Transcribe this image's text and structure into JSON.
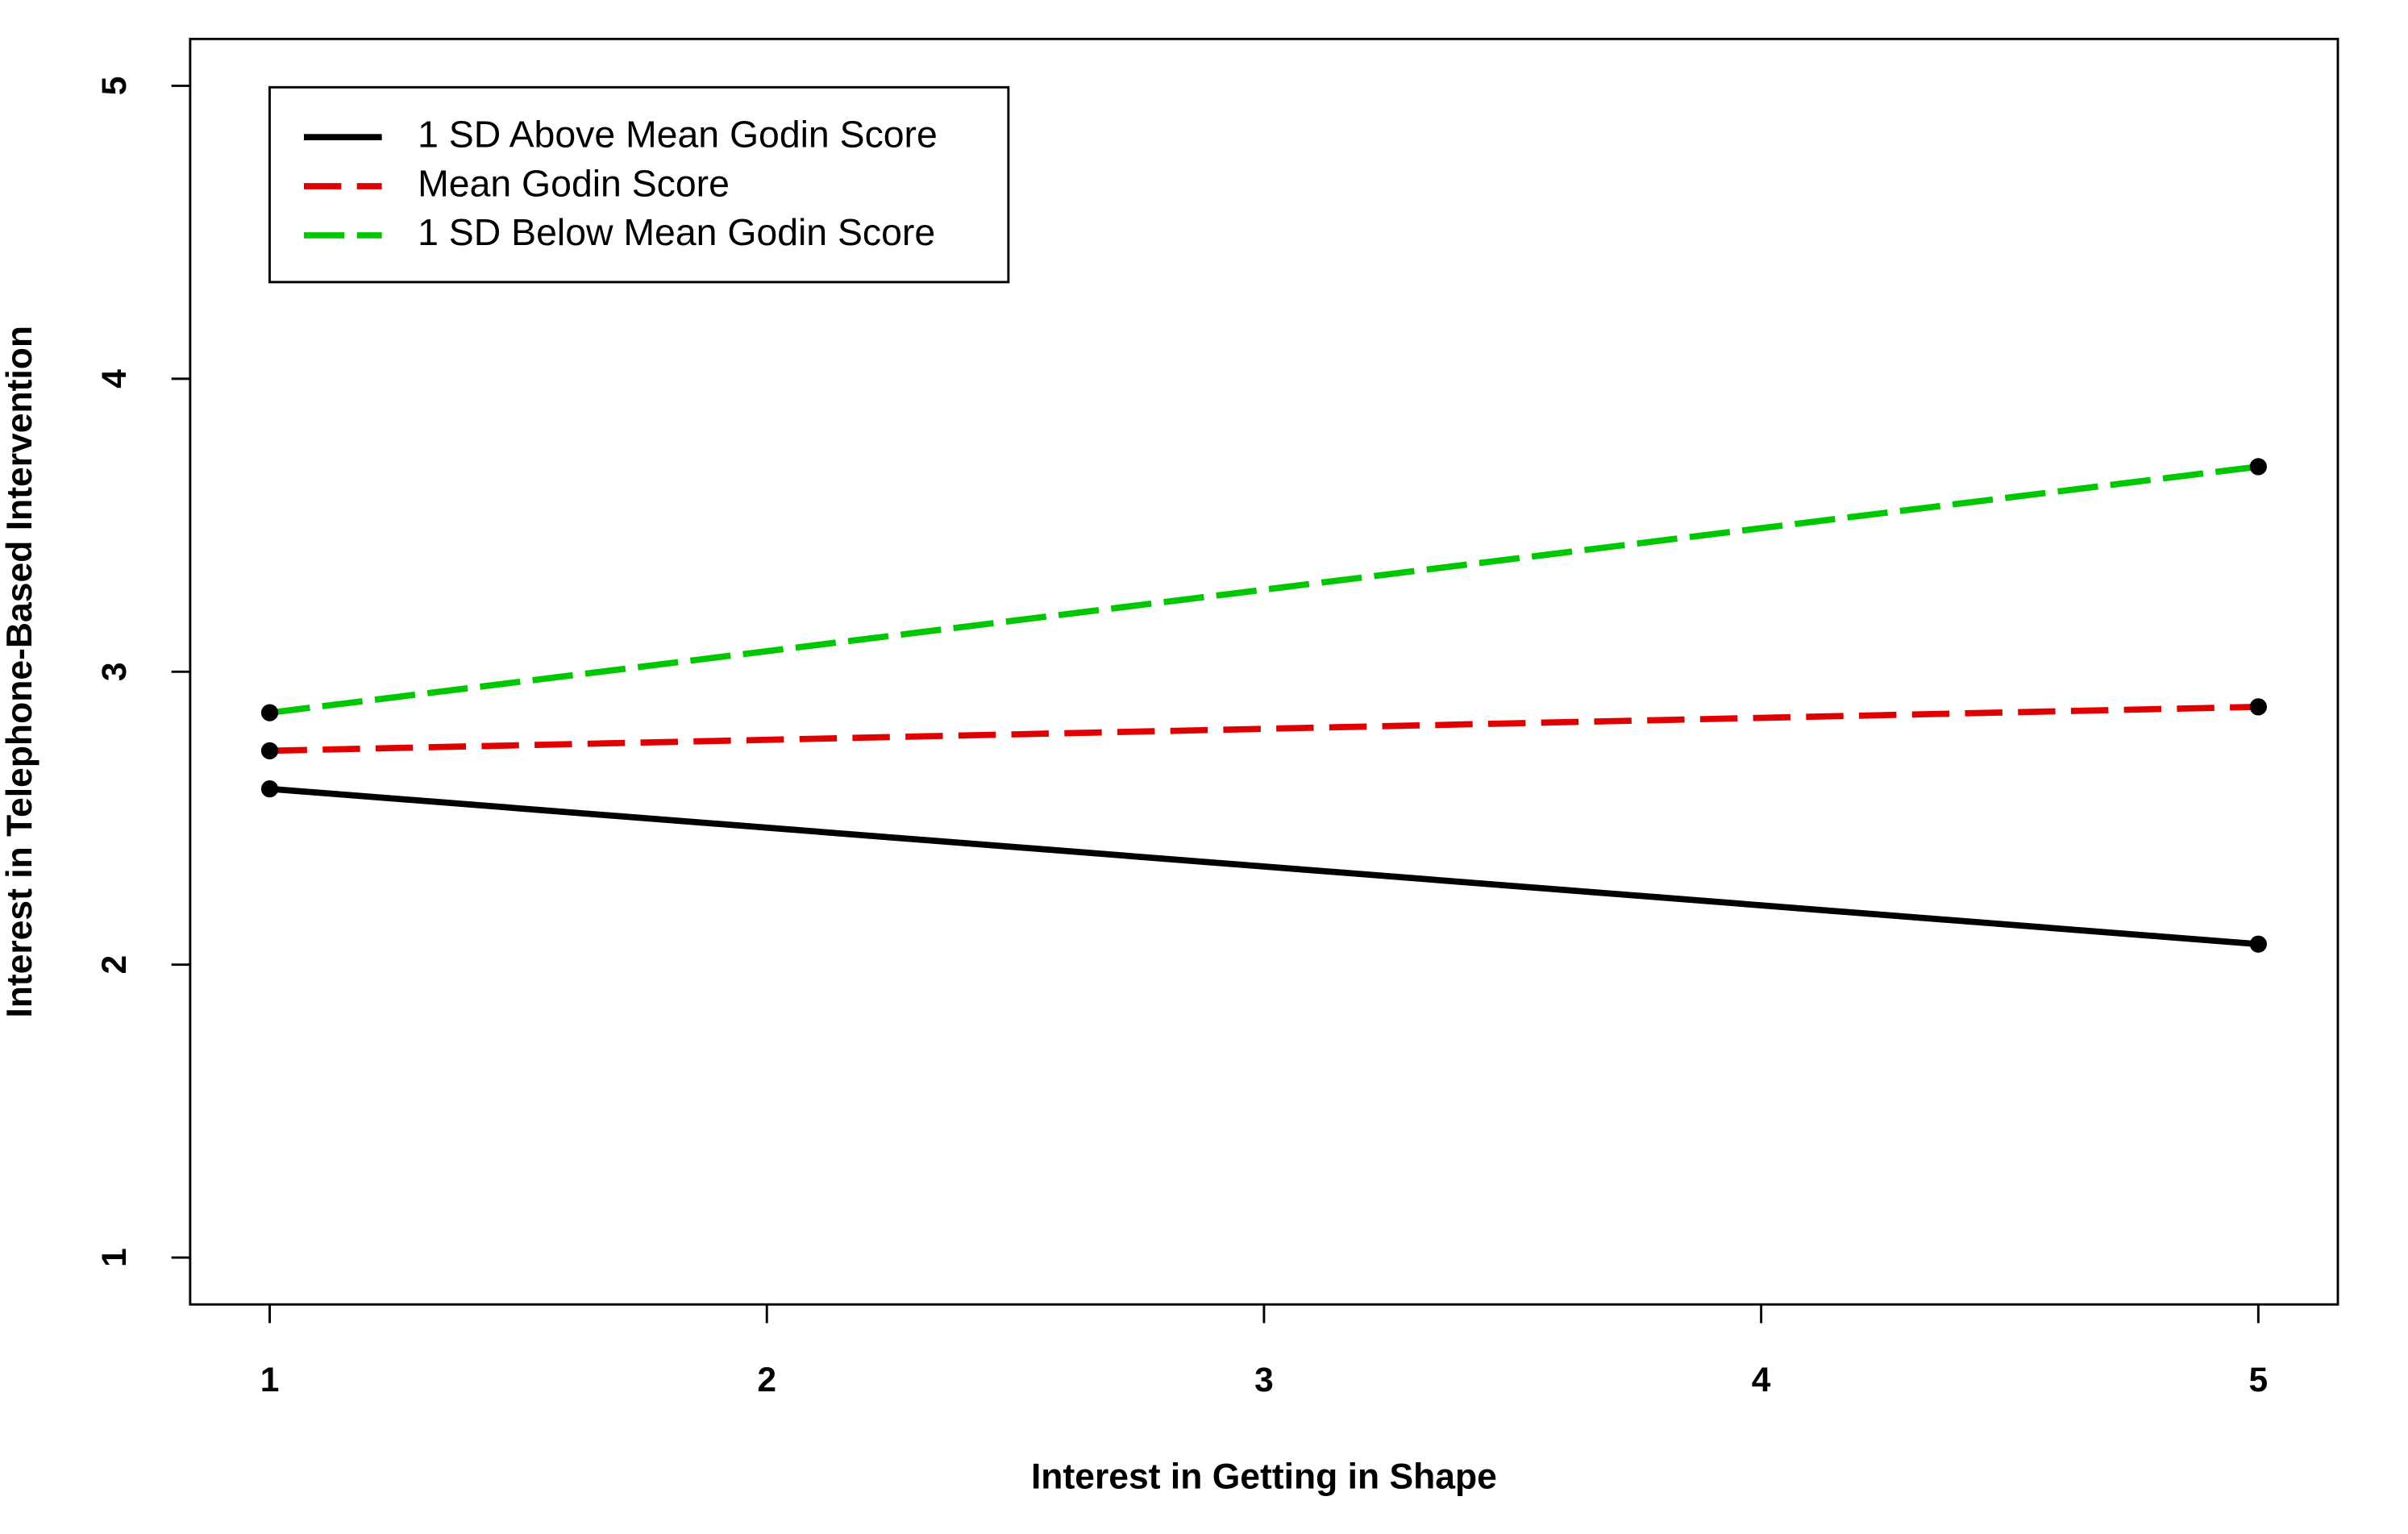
{
  "chart_data": {
    "type": "line",
    "x_label": "Interest in Getting in Shape",
    "y_label": "Interest in Telephone-Based Intervention",
    "x": [
      1,
      5
    ],
    "series": [
      {
        "name": "1 SD Above Mean Godin Score",
        "color": "#000000",
        "dash": "solid",
        "values": [
          2.6,
          2.07
        ]
      },
      {
        "name": "Mean Godin Score",
        "color": "#df0000",
        "dash": "dashed",
        "values": [
          2.73,
          2.88
        ]
      },
      {
        "name": "1 SD Below Mean Godin Score",
        "color": "#00c800",
        "dash": "longdash",
        "values": [
          2.86,
          3.7
        ]
      }
    ],
    "xlim": [
      0.84,
      5.16
    ],
    "ylim": [
      0.84,
      5.16
    ],
    "xticks": [
      1,
      2,
      3,
      4,
      5
    ],
    "yticks": [
      1,
      2,
      3,
      4,
      5
    ],
    "markers": true,
    "legend": "top-left"
  }
}
